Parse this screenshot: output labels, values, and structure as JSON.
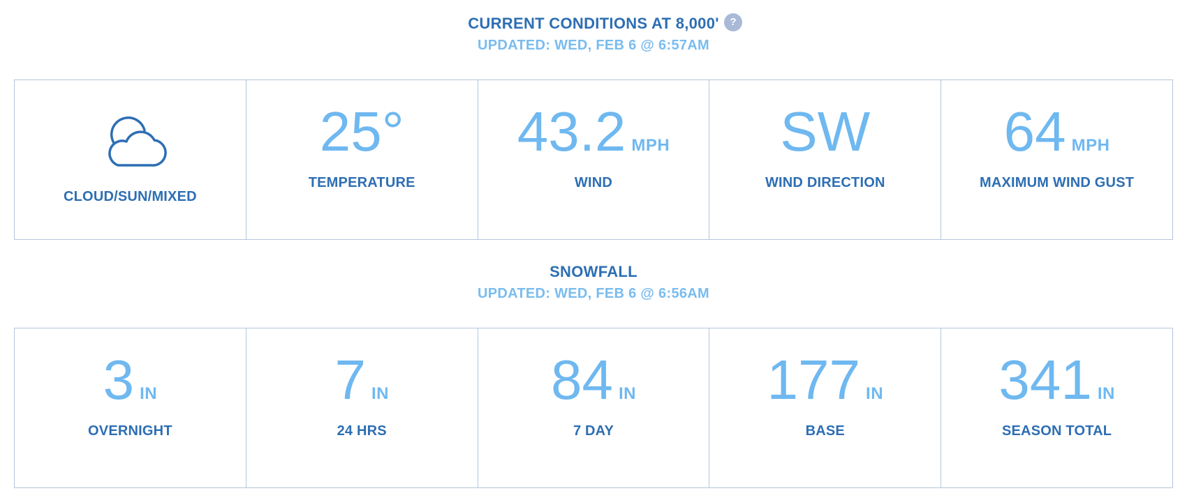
{
  "conditions": {
    "title": "CURRENT CONDITIONS AT 8,000'",
    "updated": "UPDATED: WED, FEB 6 @ 6:57AM",
    "help_icon": "?",
    "cells": [
      {
        "icon": "cloud-sun-icon",
        "label": "CLOUD/SUN/MIXED"
      },
      {
        "value": "25°",
        "unit": "",
        "label": "TEMPERATURE"
      },
      {
        "value": "43.2",
        "unit": "MPH",
        "label": "WIND"
      },
      {
        "value": "SW",
        "unit": "",
        "label": "WIND DIRECTION"
      },
      {
        "value": "64",
        "unit": "MPH",
        "label": "MAXIMUM WIND GUST"
      }
    ]
  },
  "snowfall": {
    "title": "SNOWFALL",
    "updated": "UPDATED: WED, FEB 6 @ 6:56AM",
    "cells": [
      {
        "value": "3",
        "unit": "IN",
        "label": "OVERNIGHT"
      },
      {
        "value": "7",
        "unit": "IN",
        "label": "24 HRS"
      },
      {
        "value": "84",
        "unit": "IN",
        "label": "7 DAY"
      },
      {
        "value": "177",
        "unit": "IN",
        "label": "BASE"
      },
      {
        "value": "341",
        "unit": "IN",
        "label": "SEASON TOTAL"
      }
    ]
  },
  "colors": {
    "accent_dark": "#2d6eb3",
    "accent_light": "#6fb8f0",
    "border": "#b3c6dc"
  }
}
